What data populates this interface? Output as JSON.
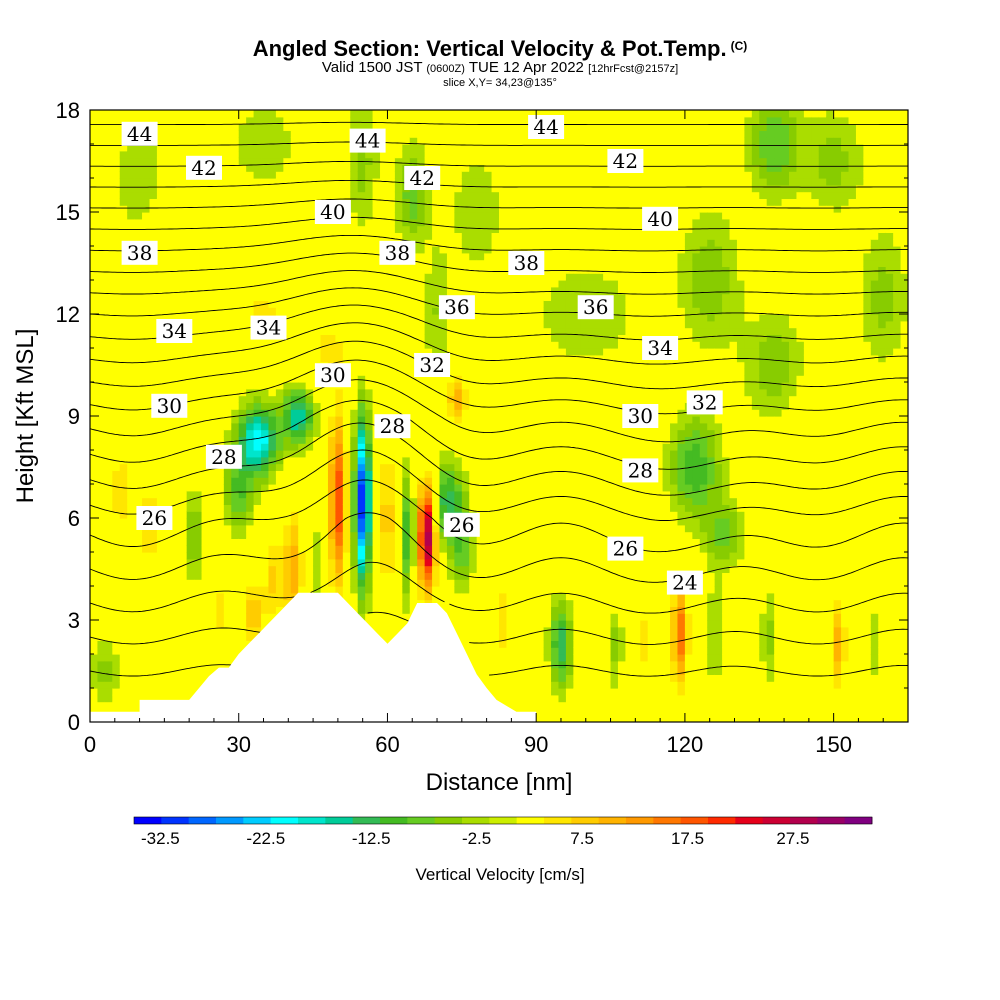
{
  "header": {
    "title": "Angled Section: Vertical Velocity & Pot.Temp.",
    "title_unit": "(C)",
    "subtitle_main": "Valid 1500 JST",
    "subtitle_z": "(0600Z)",
    "subtitle_date": "TUE 12 Apr 2022",
    "subtitle_fcst": "[12hrFcst@2157z]",
    "slice": "slice X,Y= 34,23@135°"
  },
  "chart_data": {
    "type": "heatmap",
    "xlabel": "Distance [nm]",
    "ylabel": "Height [Kft MSL]",
    "xlim": [
      0,
      165
    ],
    "ylim": [
      0,
      18
    ],
    "x_ticks": [
      0,
      30,
      60,
      90,
      120,
      150
    ],
    "y_ticks": [
      0,
      3,
      6,
      9,
      12,
      15,
      18
    ],
    "colorbar": {
      "title": "Vertical Velocity [cm/s]",
      "tick_labels": [
        -32.5,
        -22.5,
        -12.5,
        -2.5,
        7.5,
        17.5,
        27.5
      ],
      "levels": [
        -35,
        -32.5,
        -30,
        -27.5,
        -25,
        -22.5,
        -20,
        -17.5,
        -15,
        -12.5,
        -10,
        -7.5,
        -5,
        -2.5,
        2.5,
        5,
        7.5,
        10,
        12.5,
        15,
        17.5,
        20,
        22.5,
        25,
        27.5,
        30,
        32.5
      ],
      "colors": [
        "#0000ff",
        "#0033ff",
        "#0066ff",
        "#0099ff",
        "#00ccff",
        "#00ffff",
        "#00e5cc",
        "#00cc99",
        "#33bb55",
        "#44bb22",
        "#66cc22",
        "#88cc00",
        "#aadd00",
        "#ccee00",
        "#ffff00",
        "#ffe600",
        "#ffcc00",
        "#ffb300",
        "#ff9900",
        "#ff7700",
        "#ff5500",
        "#ff2a00",
        "#e6001a",
        "#cc0033",
        "#b3004d",
        "#990066",
        "#800080"
      ]
    },
    "terrain": [
      [
        0,
        0.3
      ],
      [
        10,
        0.3
      ],
      [
        10,
        0.65
      ],
      [
        20,
        0.65
      ],
      [
        22,
        1.0
      ],
      [
        24,
        1.35
      ],
      [
        26,
        1.6
      ],
      [
        28,
        1.6
      ],
      [
        30,
        2.0
      ],
      [
        32,
        2.3
      ],
      [
        34,
        2.6
      ],
      [
        36,
        2.9
      ],
      [
        38,
        3.2
      ],
      [
        40,
        3.5
      ],
      [
        42,
        3.8
      ],
      [
        50,
        3.8
      ],
      [
        52,
        3.5
      ],
      [
        54,
        3.2
      ],
      [
        56,
        2.9
      ],
      [
        58,
        2.6
      ],
      [
        60,
        2.3
      ],
      [
        62,
        2.6
      ],
      [
        64,
        2.9
      ],
      [
        66,
        3.5
      ],
      [
        70,
        3.5
      ],
      [
        72,
        3.2
      ],
      [
        74,
        2.6
      ],
      [
        76,
        2.0
      ],
      [
        78,
        1.4
      ],
      [
        80,
        1.0
      ],
      [
        82,
        0.65
      ],
      [
        86,
        0.3
      ],
      [
        90,
        0.3
      ],
      [
        90,
        0
      ],
      [
        0,
        0
      ]
    ],
    "velocity_cells": [
      {
        "x": 55,
        "y": 6.5,
        "sx": 1.6,
        "sy": 2.4,
        "v": -32
      },
      {
        "x": 64,
        "y": 5.5,
        "sx": 1.5,
        "sy": 1.8,
        "v": -12
      },
      {
        "x": 50,
        "y": 6.5,
        "sx": 1.8,
        "sy": 2.6,
        "v": 20
      },
      {
        "x": 68,
        "y": 5.5,
        "sx": 1.8,
        "sy": 1.6,
        "v": 30
      },
      {
        "x": 60,
        "y": 6.0,
        "sx": 1.5,
        "sy": 2.5,
        "v": 10
      },
      {
        "x": 34,
        "y": 8.3,
        "sx": 4.0,
        "sy": 1.0,
        "v": -22
      },
      {
        "x": 30,
        "y": 6.8,
        "sx": 3.0,
        "sy": 1.2,
        "v": -10
      },
      {
        "x": 42,
        "y": 9.0,
        "sx": 3.0,
        "sy": 0.8,
        "v": -18
      },
      {
        "x": 72,
        "y": 6.5,
        "sx": 3.0,
        "sy": 1.2,
        "v": -14
      },
      {
        "x": 75,
        "y": 5.2,
        "sx": 2.2,
        "sy": 1.3,
        "v": -10
      },
      {
        "x": 74,
        "y": 9.5,
        "sx": 2.0,
        "sy": 0.8,
        "v": 12
      },
      {
        "x": 41,
        "y": 4.5,
        "sx": 2.0,
        "sy": 1.8,
        "v": 12
      },
      {
        "x": 37,
        "y": 4.2,
        "sx": 2.0,
        "sy": 1.5,
        "v": 8
      },
      {
        "x": 33,
        "y": 3.2,
        "sx": 2.0,
        "sy": 1.0,
        "v": 10
      },
      {
        "x": 46,
        "y": 4.5,
        "sx": 1.5,
        "sy": 1.5,
        "v": -5
      },
      {
        "x": 26,
        "y": 3.3,
        "sx": 2.0,
        "sy": 0.8,
        "v": 7
      },
      {
        "x": 21,
        "y": 5.5,
        "sx": 2.0,
        "sy": 1.2,
        "v": -8
      },
      {
        "x": 12,
        "y": 5.8,
        "sx": 2.5,
        "sy": 1.5,
        "v": 7
      },
      {
        "x": 6,
        "y": 6.8,
        "sx": 3.0,
        "sy": 2.0,
        "v": 6
      },
      {
        "x": 83,
        "y": 3.0,
        "sx": 1.5,
        "sy": 1.5,
        "v": 7
      },
      {
        "x": 95,
        "y": 2.3,
        "sx": 2.2,
        "sy": 1.3,
        "v": -14
      },
      {
        "x": 101,
        "y": 2.3,
        "sx": 1.5,
        "sy": 1.3,
        "v": 5
      },
      {
        "x": 106,
        "y": 2.3,
        "sx": 1.5,
        "sy": 1.4,
        "v": -6
      },
      {
        "x": 112,
        "y": 2.3,
        "sx": 1.5,
        "sy": 1.4,
        "v": 6
      },
      {
        "x": 119,
        "y": 2.6,
        "sx": 1.7,
        "sy": 1.6,
        "v": 17
      },
      {
        "x": 126,
        "y": 2.5,
        "sx": 1.5,
        "sy": 1.5,
        "v": -6
      },
      {
        "x": 137,
        "y": 2.5,
        "sx": 1.6,
        "sy": 1.4,
        "v": -6
      },
      {
        "x": 151,
        "y": 2.3,
        "sx": 1.5,
        "sy": 1.4,
        "v": 12
      },
      {
        "x": 158,
        "y": 2.3,
        "sx": 1.5,
        "sy": 1.4,
        "v": -4
      },
      {
        "x": 122,
        "y": 7.5,
        "sx": 5.0,
        "sy": 1.5,
        "v": -12
      },
      {
        "x": 128,
        "y": 5.5,
        "sx": 4.0,
        "sy": 1.0,
        "v": -8
      },
      {
        "x": 138,
        "y": 10.5,
        "sx": 6.0,
        "sy": 1.5,
        "v": -7
      },
      {
        "x": 100,
        "y": 12.0,
        "sx": 10.0,
        "sy": 1.5,
        "v": -5
      },
      {
        "x": 125,
        "y": 13.0,
        "sx": 6.0,
        "sy": 2.0,
        "v": -7
      },
      {
        "x": 138,
        "y": 17.0,
        "sx": 5.0,
        "sy": 1.5,
        "v": -10
      },
      {
        "x": 150,
        "y": 16.5,
        "sx": 6.0,
        "sy": 1.5,
        "v": -6
      },
      {
        "x": 65,
        "y": 15.5,
        "sx": 3.0,
        "sy": 1.5,
        "v": -9
      },
      {
        "x": 55,
        "y": 16.5,
        "sx": 3.0,
        "sy": 2.0,
        "v": -6
      },
      {
        "x": 70,
        "y": 12.0,
        "sx": 2.5,
        "sy": 2.0,
        "v": -5
      },
      {
        "x": 78,
        "y": 15.0,
        "sx": 6.0,
        "sy": 2.0,
        "v": -4
      },
      {
        "x": 20,
        "y": 14.0,
        "sx": 6.0,
        "sy": 1.5,
        "v": 5
      },
      {
        "x": 15,
        "y": 11.0,
        "sx": 5.0,
        "sy": 1.2,
        "v": 5
      },
      {
        "x": 35,
        "y": 12.0,
        "sx": 5.0,
        "sy": 1.0,
        "v": 6
      },
      {
        "x": 48,
        "y": 11.0,
        "sx": 4.0,
        "sy": 1.0,
        "v": 6
      },
      {
        "x": 95,
        "y": 9.0,
        "sx": 6.0,
        "sy": 1.0,
        "v": 5
      },
      {
        "x": 150,
        "y": 8.5,
        "sx": 6.0,
        "sy": 2.0,
        "v": 5
      },
      {
        "x": 10,
        "y": 16.0,
        "sx": 5.0,
        "sy": 1.5,
        "v": -5
      },
      {
        "x": 35,
        "y": 17.0,
        "sx": 6.0,
        "sy": 1.2,
        "v": -5
      },
      {
        "x": 105,
        "y": 4.5,
        "sx": 8.0,
        "sy": 1.0,
        "v": 5
      },
      {
        "x": 160,
        "y": 12.5,
        "sx": 5.0,
        "sy": 2.0,
        "v": -6
      },
      {
        "x": 3,
        "y": 1.5,
        "sx": 3.0,
        "sy": 1.0,
        "v": -6
      }
    ],
    "theta_profile": {
      "heights_kft": [
        0,
        3,
        6,
        9,
        12,
        15,
        18
      ],
      "theta_c": [
        20.5,
        23.5,
        26.5,
        30.5,
        35.0,
        39.8,
        44.7
      ]
    },
    "theta_contour_levels": [
      22,
      23,
      24,
      25,
      26,
      27,
      28,
      29,
      30,
      31,
      32,
      33,
      34,
      35,
      36,
      37,
      38,
      39,
      40,
      41,
      42,
      43,
      44
    ],
    "contour_labels": [
      {
        "text": "44",
        "x": 10,
        "y": 17.3
      },
      {
        "text": "44",
        "x": 56,
        "y": 17.1
      },
      {
        "text": "44",
        "x": 92,
        "y": 17.5
      },
      {
        "text": "42",
        "x": 23,
        "y": 16.3
      },
      {
        "text": "42",
        "x": 67,
        "y": 16.0
      },
      {
        "text": "42",
        "x": 108,
        "y": 16.5
      },
      {
        "text": "40",
        "x": 49,
        "y": 15.0
      },
      {
        "text": "40",
        "x": 115,
        "y": 14.8
      },
      {
        "text": "38",
        "x": 10,
        "y": 13.8
      },
      {
        "text": "38",
        "x": 62,
        "y": 13.8
      },
      {
        "text": "38",
        "x": 88,
        "y": 13.5
      },
      {
        "text": "36",
        "x": 74,
        "y": 12.2
      },
      {
        "text": "36",
        "x": 102,
        "y": 12.2
      },
      {
        "text": "34",
        "x": 17,
        "y": 11.5
      },
      {
        "text": "34",
        "x": 36,
        "y": 11.6
      },
      {
        "text": "34",
        "x": 115,
        "y": 11.0
      },
      {
        "text": "32",
        "x": 69,
        "y": 10.5
      },
      {
        "text": "32",
        "x": 124,
        "y": 9.4
      },
      {
        "text": "30",
        "x": 49,
        "y": 10.2
      },
      {
        "text": "30",
        "x": 16,
        "y": 9.3
      },
      {
        "text": "30",
        "x": 111,
        "y": 9.0
      },
      {
        "text": "28",
        "x": 61,
        "y": 8.7
      },
      {
        "text": "28",
        "x": 27,
        "y": 7.8
      },
      {
        "text": "28",
        "x": 111,
        "y": 7.4
      },
      {
        "text": "26",
        "x": 13,
        "y": 6.0
      },
      {
        "text": "26",
        "x": 75,
        "y": 5.8
      },
      {
        "text": "26",
        "x": 108,
        "y": 5.1
      },
      {
        "text": "24",
        "x": 120,
        "y": 4.1
      }
    ]
  }
}
